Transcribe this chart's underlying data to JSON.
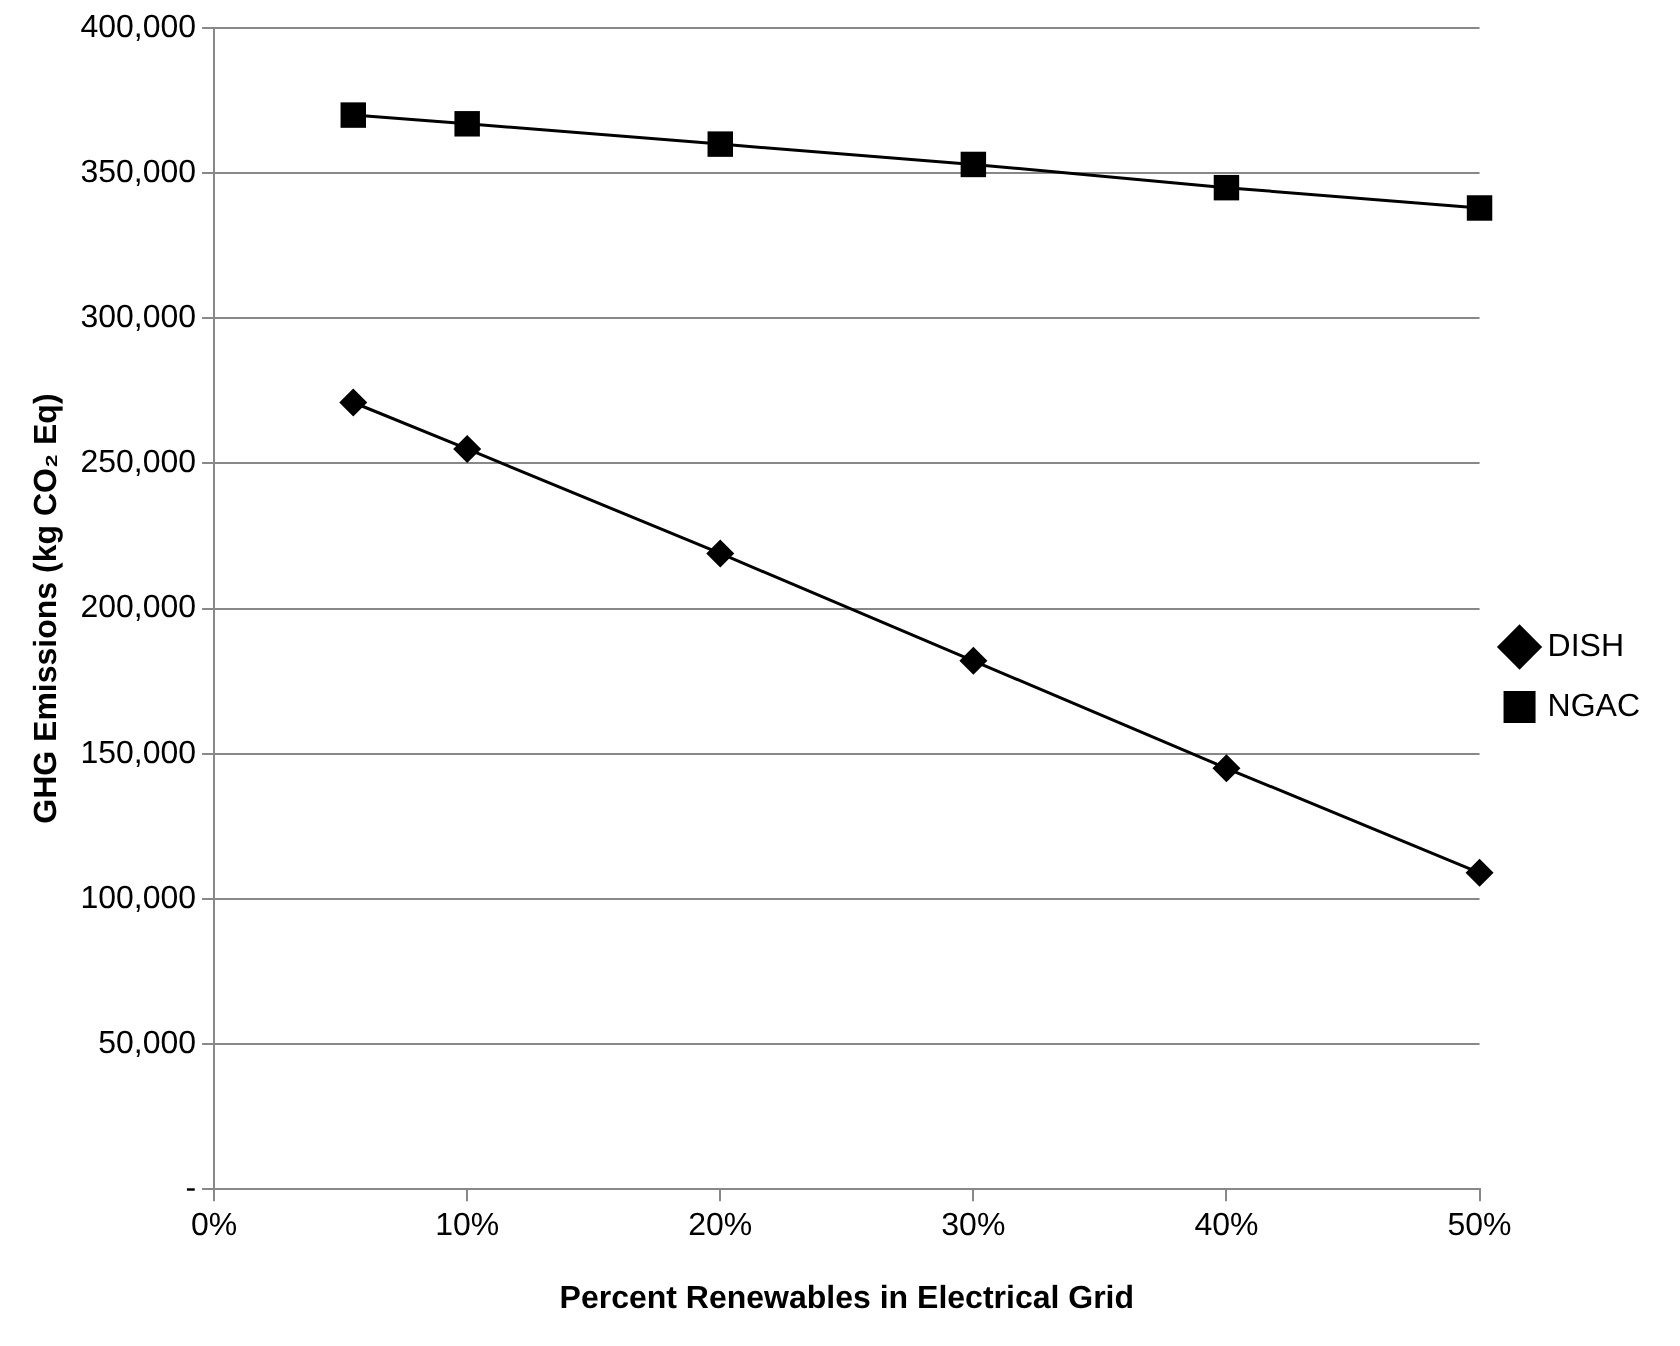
{
  "chart_data": {
    "type": "line",
    "xlabel": "Percent Renewables in Electrical Grid",
    "ylabel": "GHG Emissions (kg CO₂ Eq)",
    "x": [
      5.5,
      10,
      20,
      30,
      40,
      50
    ],
    "series": [
      {
        "name": "DISH",
        "color": "#000000",
        "marker": "diamond",
        "values": [
          271000,
          255000,
          219000,
          182000,
          145000,
          109000
        ]
      },
      {
        "name": "NGAC",
        "color": "#000000",
        "marker": "square",
        "values": [
          370000,
          367000,
          360000,
          353000,
          345000,
          338000
        ]
      }
    ],
    "xlim": [
      0,
      50
    ],
    "xticks": [
      {
        "value": 0,
        "label": "0%"
      },
      {
        "value": 10,
        "label": "10%"
      },
      {
        "value": 20,
        "label": "20%"
      },
      {
        "value": 30,
        "label": "30%"
      },
      {
        "value": 40,
        "label": "40%"
      },
      {
        "value": 50,
        "label": "50%"
      }
    ],
    "ylim": [
      0,
      400000
    ],
    "yticks": [
      {
        "value": 0,
        "label": "-"
      },
      {
        "value": 50000,
        "label": "50,000"
      },
      {
        "value": 100000,
        "label": "100,000"
      },
      {
        "value": 150000,
        "label": "150,000"
      },
      {
        "value": 200000,
        "label": "200,000"
      },
      {
        "value": 250000,
        "label": "250,000"
      },
      {
        "value": 300000,
        "label": "300,000"
      },
      {
        "value": 350000,
        "label": "350,000"
      },
      {
        "value": 400000,
        "label": "400,000"
      }
    ],
    "grid": "y",
    "legend": "right",
    "line_style": "solid"
  }
}
